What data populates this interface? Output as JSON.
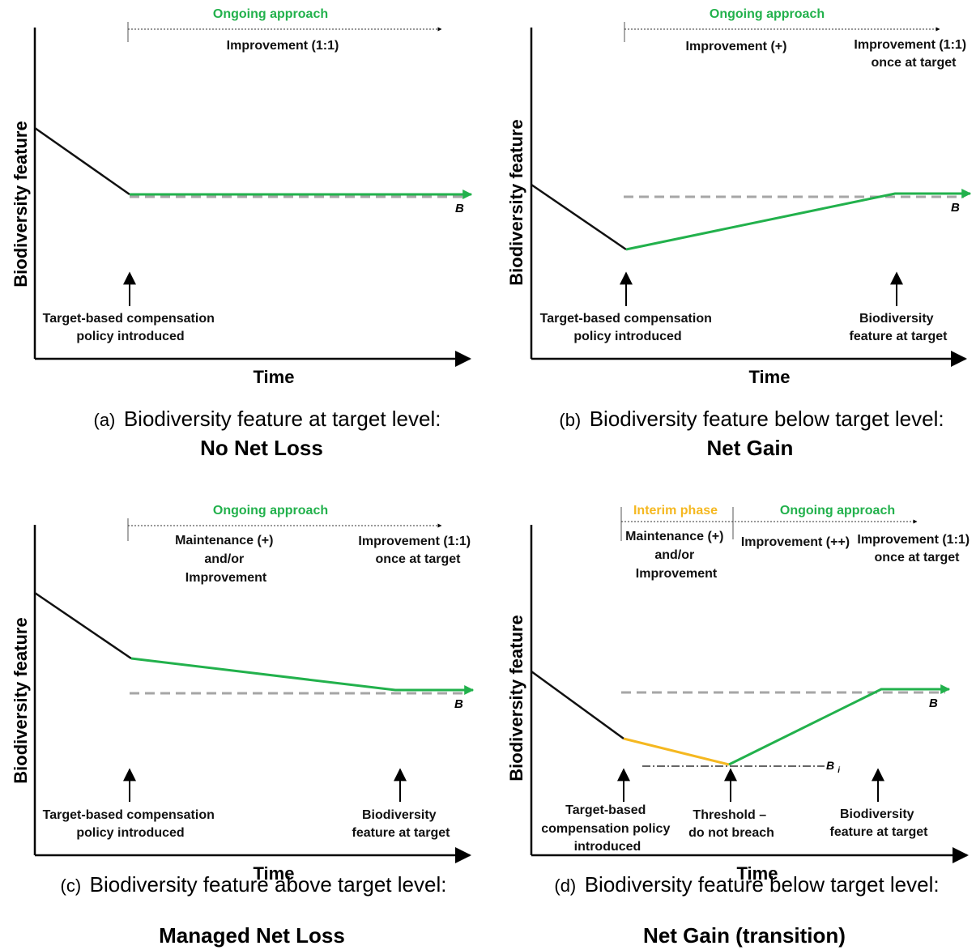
{
  "colors": {
    "pre_policy": "#111111",
    "ongoing": "#22b14c",
    "interim": "#f5b820",
    "target_line": "#a6a6a6",
    "threshold_line": "#333333"
  },
  "panels": [
    {
      "id": "a",
      "header_ongoing": "Ongoing approach",
      "header_interim": "",
      "phase_labels": [
        {
          "lines": [
            "Improvement (1:1)"
          ]
        }
      ],
      "y_axis_label": "Biodiversity feature",
      "x_axis_label": "Time",
      "target_label": "B",
      "threshold_label": "",
      "annotations": [
        {
          "lines": [
            "Target-based compensation",
            "policy introduced"
          ]
        }
      ],
      "caption_prefix": "(a)",
      "caption_text": "Biodiversity feature at target level:",
      "caption_bold": "No Net Loss"
    },
    {
      "id": "b",
      "header_ongoing": "Ongoing approach",
      "header_interim": "",
      "phase_labels": [
        {
          "lines": [
            "Improvement (+)"
          ]
        },
        {
          "lines": [
            "Improvement (1:1)",
            "once at target"
          ]
        }
      ],
      "y_axis_label": "Biodiversity feature",
      "x_axis_label": "Time",
      "target_label": "B",
      "threshold_label": "",
      "annotations": [
        {
          "lines": [
            "Target-based compensation",
            "policy introduced"
          ]
        },
        {
          "lines": [
            "Biodiversity",
            "feature at target"
          ]
        }
      ],
      "caption_prefix": "(b)",
      "caption_text": "Biodiversity feature below target level:",
      "caption_bold": "Net Gain"
    },
    {
      "id": "c",
      "header_ongoing": "Ongoing approach",
      "header_interim": "",
      "phase_labels": [
        {
          "lines": [
            "Maintenance (+)",
            "and/or",
            "Improvement"
          ]
        },
        {
          "lines": [
            "Improvement (1:1)",
            "once at target"
          ]
        }
      ],
      "y_axis_label": "Biodiversity feature",
      "x_axis_label": "Time",
      "target_label": "B",
      "threshold_label": "",
      "annotations": [
        {
          "lines": [
            "Target-based compensation",
            "policy introduced"
          ]
        },
        {
          "lines": [
            "Biodiversity",
            "feature at target"
          ]
        }
      ],
      "caption_prefix": "(c)",
      "caption_text": "Biodiversity feature above target level:",
      "caption_bold": "Managed Net Loss"
    },
    {
      "id": "d",
      "header_ongoing": "Ongoing approach",
      "header_interim": "Interim phase",
      "phase_labels": [
        {
          "lines": [
            "Maintenance (+)",
            "and/or",
            "Improvement"
          ]
        },
        {
          "lines": [
            "Improvement (++)"
          ]
        },
        {
          "lines": [
            "Improvement (1:1)",
            "once at target"
          ]
        }
      ],
      "y_axis_label": "Biodiversity feature",
      "x_axis_label": "Time",
      "target_label": "B",
      "threshold_label": "Bi",
      "annotations": [
        {
          "lines": [
            "Target-based",
            "compensation policy",
            "introduced"
          ]
        },
        {
          "lines": [
            "Threshold –",
            "do not breach"
          ]
        },
        {
          "lines": [
            "Biodiversity",
            "feature at target"
          ]
        }
      ],
      "caption_prefix": "(d)",
      "caption_text": "Biodiversity feature below target level:",
      "caption_bold": "Net Gain (transition)"
    }
  ]
}
